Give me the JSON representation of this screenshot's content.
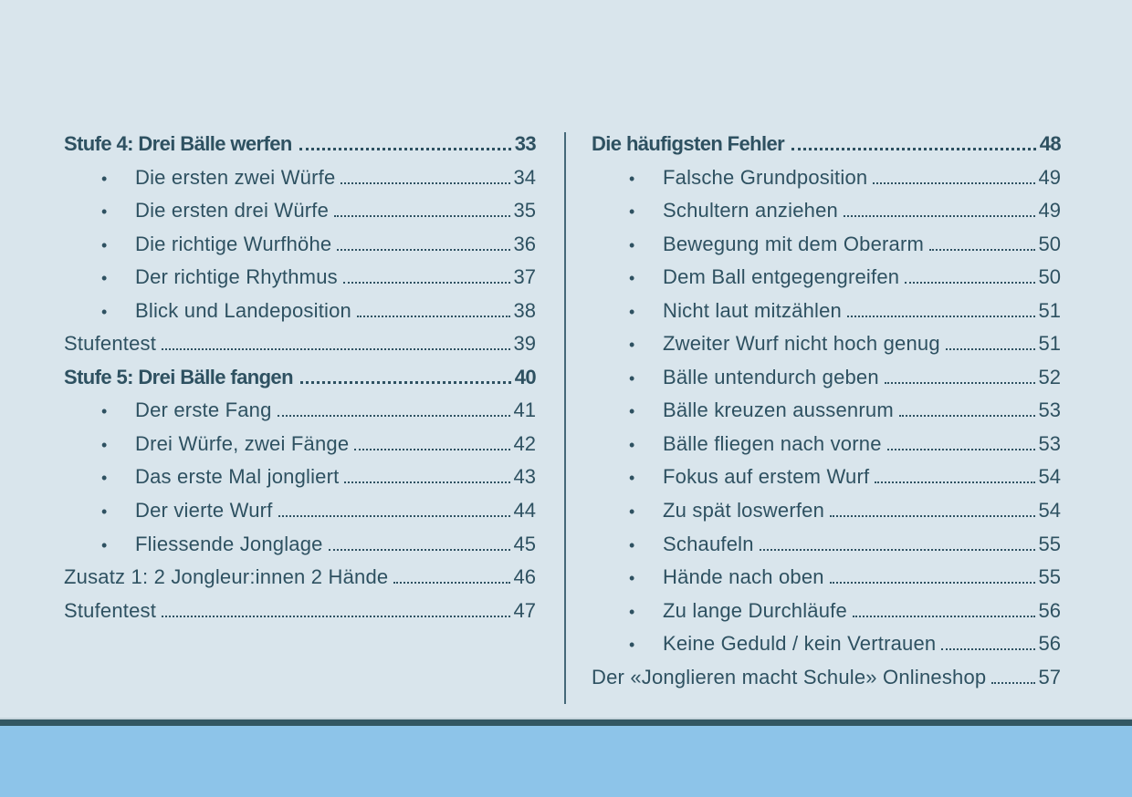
{
  "page": {
    "colors": {
      "background": "#d9e5ec",
      "text": "#2e5161",
      "divider": "#456879",
      "footer_strip": "#335762",
      "footer_band": "#8dc4e9"
    }
  },
  "toc": {
    "bullet_glyph": "•",
    "left_column": {
      "entries": [
        {
          "title": "Stufe 4: Drei Bälle werfen",
          "page": "33"
        },
        {
          "title": "Die ersten zwei Würfe",
          "page": "34"
        },
        {
          "title": "Die ersten drei Würfe",
          "page": "35"
        },
        {
          "title": "Die richtige Wurfhöhe",
          "page": "36"
        },
        {
          "title": "Der richtige Rhythmus",
          "page": "37"
        },
        {
          "title": "Blick und Landeposition",
          "page": "38"
        },
        {
          "title": "Stufentest",
          "page": "39"
        },
        {
          "title": "Stufe 5: Drei Bälle fangen",
          "page": "40"
        },
        {
          "title": "Der erste Fang",
          "page": "41"
        },
        {
          "title": "Drei Würfe, zwei Fänge",
          "page": "42"
        },
        {
          "title": "Das erste Mal jongliert",
          "page": "43"
        },
        {
          "title": "Der vierte Wurf",
          "page": "44"
        },
        {
          "title": "Fliessende Jonglage",
          "page": "45"
        },
        {
          "title": "Zusatz 1: 2 Jongleur:innen 2 Hände",
          "page": "46"
        },
        {
          "title": "Stufentest",
          "page": "47"
        }
      ]
    },
    "right_column": {
      "entries": [
        {
          "title": "Die häufigsten Fehler",
          "page": "48"
        },
        {
          "title": "Falsche Grundposition",
          "page": "49"
        },
        {
          "title": "Schultern anziehen",
          "page": "49"
        },
        {
          "title": "Bewegung mit dem Oberarm",
          "page": "50"
        },
        {
          "title": "Dem Ball entgegengreifen",
          "page": "50"
        },
        {
          "title": "Nicht laut mitzählen",
          "page": "51"
        },
        {
          "title": "Zweiter Wurf nicht hoch genug",
          "page": "51"
        },
        {
          "title": "Bälle untendurch geben",
          "page": "52"
        },
        {
          "title": "Bälle kreuzen aussenrum",
          "page": "53"
        },
        {
          "title": "Bälle fliegen nach vorne",
          "page": "53"
        },
        {
          "title": "Fokus auf erstem Wurf",
          "page": "54"
        },
        {
          "title": "Zu spät loswerfen",
          "page": "54"
        },
        {
          "title": "Schaufeln",
          "page": "55"
        },
        {
          "title": "Hände nach oben",
          "page": "55"
        },
        {
          "title": "Zu lange Durchläufe",
          "page": "56"
        },
        {
          "title": "Keine Geduld / kein Vertrauen",
          "page": "56"
        },
        {
          "title": "Der «Jonglieren macht Schule» Onlineshop",
          "page": "57"
        }
      ]
    }
  }
}
